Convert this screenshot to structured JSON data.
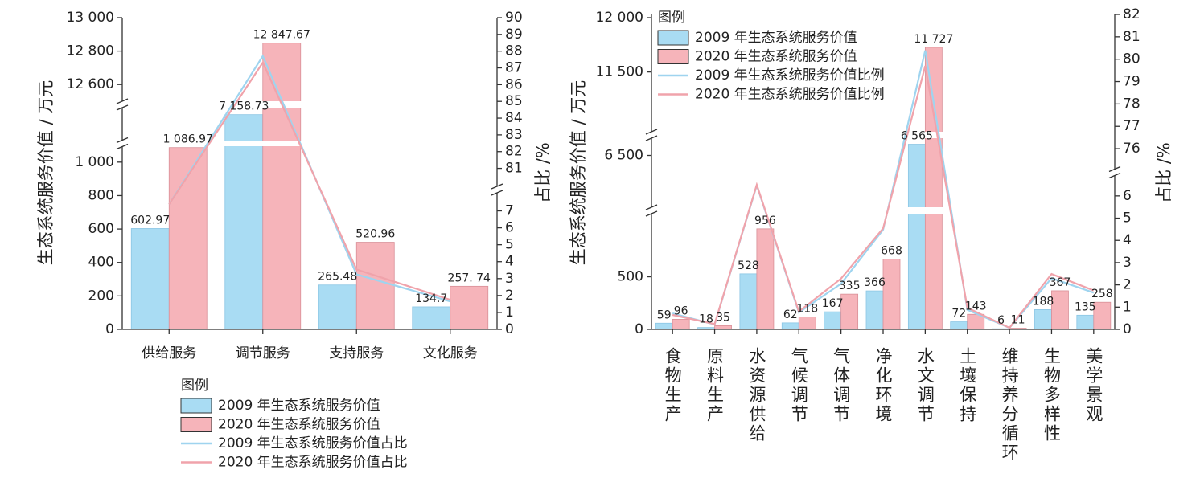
{
  "chart_data": [
    {
      "type": "bar",
      "categories": [
        "供给服务",
        "调节服务",
        "支持服务",
        "文化服务"
      ],
      "y_label": "生态系统服务价值 / 万元",
      "y2_label": "占比 /%",
      "axis_breaks": true,
      "ylim": [
        [
          0,
          1100
        ],
        [
          7000,
          7200
        ],
        [
          12500,
          13000
        ]
      ],
      "yticks": [
        0,
        200,
        400,
        600,
        800,
        {
          "value": 1000,
          "label": "1 000"
        },
        {
          "value": 12600,
          "label": "12 600"
        },
        {
          "value": 12800,
          "label": "12 800"
        },
        {
          "value": 13000,
          "label": "13 000"
        }
      ],
      "y2lim": [
        [
          0,
          7.5
        ],
        [
          80.5,
          90
        ]
      ],
      "y2ticks": [
        0,
        1,
        2,
        3,
        4,
        5,
        6,
        7,
        81,
        82,
        83,
        84,
        85,
        86,
        87,
        88,
        89,
        90
      ],
      "legend": {
        "title": "图例",
        "position": "bottom"
      },
      "series": [
        {
          "name": "2009 年生态系统服务价值",
          "type": "bar",
          "color": "#a9dcf3",
          "values": [
            602.97,
            7158.73,
            265.48,
            134.7
          ],
          "value_labels": [
            "602.97",
            "7 158.73",
            "265.48",
            "134.7"
          ]
        },
        {
          "name": "2020 年生态系统服务价值",
          "type": "bar",
          "color": "#f6b4ba",
          "values": [
            1086.97,
            12847.67,
            520.96,
            257.74
          ],
          "value_labels": [
            "1 086.97",
            "12 847.67",
            "520.96",
            "257. 74"
          ]
        },
        {
          "name": "2009 年生态系统服务价值占比",
          "type": "line",
          "axis": "y2",
          "color": "#9fd4ef",
          "values": [
            7.39,
            87.71,
            3.25,
            1.65
          ]
        },
        {
          "name": "2020 年生态系统服务价值占比",
          "type": "line",
          "axis": "y2",
          "color": "#f0a3ab",
          "values": [
            7.39,
            87.32,
            3.54,
            1.75
          ]
        }
      ]
    },
    {
      "type": "bar",
      "categories": [
        "食物生产",
        "原料生产",
        "水资源供给",
        "气候调节",
        "气体调节",
        "净化环境",
        "水文调节",
        "土壤保持",
        "维持养分循环",
        "生物多样性",
        "美学景观"
      ],
      "y_label": "生态系统服务价值 / 万元",
      "y2_label": "占比 /%",
      "axis_breaks": true,
      "ylim": [
        [
          0,
          1100
        ],
        [
          6200,
          6600
        ],
        [
          10950,
          12000
        ]
      ],
      "yticks": [
        0,
        500,
        {
          "value": 6500,
          "label": "6 500"
        },
        {
          "value": 11500,
          "label": "11 500"
        },
        {
          "value": 12000,
          "label": "12 000"
        }
      ],
      "y2lim": [
        [
          0,
          6.5
        ],
        [
          75.5,
          82
        ]
      ],
      "y2ticks": [
        0,
        1,
        2,
        3,
        4,
        5,
        6,
        76,
        77,
        78,
        79,
        80,
        81,
        82
      ],
      "legend": {
        "title": "图例",
        "position": "upper left"
      },
      "series": [
        {
          "name": "2009 年生态系统服务价值",
          "type": "bar",
          "color": "#a9dcf3",
          "values": [
            59,
            18,
            528,
            62,
            167,
            366,
            6565,
            72,
            6,
            188,
            135
          ],
          "value_labels": [
            "59",
            "18",
            "528",
            "62",
            "167",
            "366",
            "6 565",
            "72",
            "6",
            "188",
            "135"
          ]
        },
        {
          "name": "2020 年生态系统服务价值",
          "type": "bar",
          "color": "#f6b4ba",
          "values": [
            96,
            35,
            956,
            118,
            335,
            668,
            11727,
            143,
            11,
            367,
            258
          ],
          "value_labels": [
            "96",
            "35",
            "956",
            "118",
            "335",
            "668",
            "11 727",
            "143",
            "11",
            "367",
            "258"
          ]
        },
        {
          "name": "2009 年生态系统服务价值比例",
          "type": "line",
          "axis": "y2",
          "color": "#9fd4ef",
          "values": [
            0.72,
            0.22,
            6.47,
            0.76,
            2.05,
            4.48,
            80.39,
            0.88,
            0.07,
            2.3,
            1.65
          ]
        },
        {
          "name": "2020 年生态系统服务价值比例",
          "type": "line",
          "axis": "y2",
          "color": "#f0a3ab",
          "values": [
            0.65,
            0.24,
            6.5,
            0.8,
            2.28,
            4.54,
            79.7,
            0.97,
            0.07,
            2.49,
            1.75
          ]
        }
      ]
    }
  ]
}
